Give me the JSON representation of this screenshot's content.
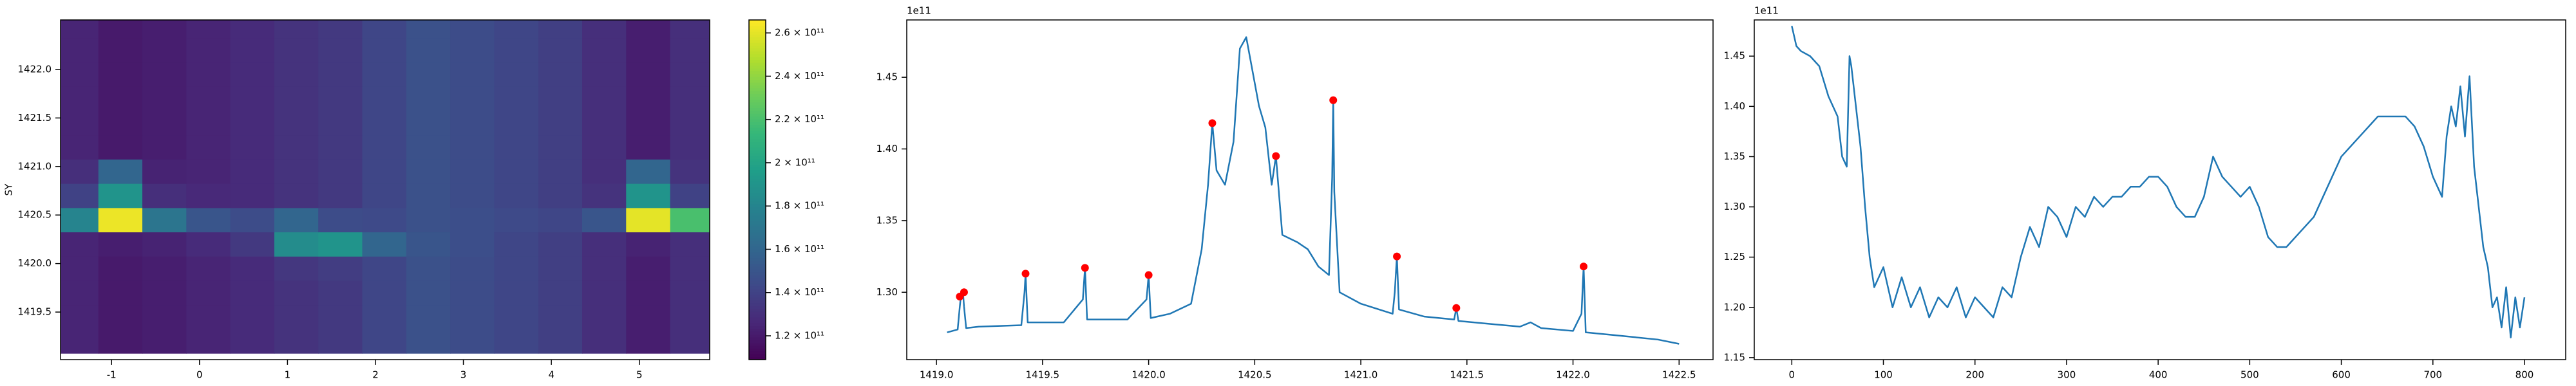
{
  "chart_data": [
    {
      "type": "heatmap",
      "ylabel": "SY",
      "colormap": "viridis",
      "xlim": [
        -1.58,
        5.8
      ],
      "ylim": [
        1419.01,
        1422.51
      ],
      "xticks": [
        -1,
        0,
        1,
        2,
        3,
        4,
        5
      ],
      "yticks": [
        1419.5,
        {
          "value": 1420,
          "label": "1420.0"
        },
        1420.5,
        {
          "value": 1421,
          "label": "1421.0"
        },
        1421.5,
        {
          "value": 1422,
          "label": "1422.0"
        }
      ],
      "x": [
        -1.4,
        -0.9,
        -0.4,
        0.1,
        0.6,
        1.1,
        1.6,
        2.1,
        2.6,
        3.1,
        3.6,
        4.1,
        4.6,
        5.1,
        5.6
      ],
      "y": [
        1419.2,
        1419.45,
        1419.7,
        1419.95,
        1420.2,
        1420.45,
        1420.7,
        1420.95,
        1421.2,
        1421.45,
        1421.7,
        1421.95,
        1422.2,
        1422.45
      ],
      "z": [
        [
          125000000000.0,
          120000000000.0,
          122000000000.0,
          125000000000.0,
          128000000000.0,
          132000000000.0,
          135000000000.0,
          142000000000.0,
          148000000000.0,
          145000000000.0,
          142000000000.0,
          138000000000.0,
          130000000000.0,
          122000000000.0,
          130000000000.0
        ],
        [
          125000000000.0,
          120000000000.0,
          122000000000.0,
          125000000000.0,
          128000000000.0,
          132000000000.0,
          135000000000.0,
          142000000000.0,
          148000000000.0,
          145000000000.0,
          142000000000.0,
          138000000000.0,
          130000000000.0,
          122000000000.0,
          130000000000.0
        ],
        [
          125000000000.0,
          120000000000.0,
          122000000000.0,
          125000000000.0,
          128000000000.0,
          132000000000.0,
          135000000000.0,
          142000000000.0,
          148000000000.0,
          145000000000.0,
          142000000000.0,
          138000000000.0,
          130000000000.0,
          122000000000.0,
          130000000000.0
        ],
        [
          125000000000.0,
          120000000000.0,
          122000000000.0,
          125000000000.0,
          128000000000.0,
          134000000000.0,
          137000000000.0,
          142000000000.0,
          148000000000.0,
          145000000000.0,
          142000000000.0,
          138000000000.0,
          130000000000.0,
          122000000000.0,
          130000000000.0
        ],
        [
          125000000000.0,
          122000000000.0,
          124000000000.0,
          128000000000.0,
          135000000000.0,
          185000000000.0,
          190000000000.0,
          160000000000.0,
          150000000000.0,
          146000000000.0,
          142000000000.0,
          138000000000.0,
          130000000000.0,
          124000000000.0,
          130000000000.0
        ],
        [
          180000000000.0,
          262000000000.0,
          170000000000.0,
          150000000000.0,
          145000000000.0,
          160000000000.0,
          145000000000.0,
          144000000000.0,
          148000000000.0,
          146000000000.0,
          144000000000.0,
          142000000000.0,
          150000000000.0,
          260000000000.0,
          220000000000.0
        ],
        [
          140000000000.0,
          190000000000.0,
          130000000000.0,
          127000000000.0,
          128000000000.0,
          132000000000.0,
          135000000000.0,
          142000000000.0,
          148000000000.0,
          145000000000.0,
          142000000000.0,
          138000000000.0,
          132000000000.0,
          190000000000.0,
          140000000000.0
        ],
        [
          130000000000.0,
          160000000000.0,
          124000000000.0,
          125000000000.0,
          128000000000.0,
          132000000000.0,
          135000000000.0,
          142000000000.0,
          148000000000.0,
          145000000000.0,
          142000000000.0,
          138000000000.0,
          130000000000.0,
          160000000000.0,
          132000000000.0
        ],
        [
          125000000000.0,
          120000000000.0,
          122000000000.0,
          125000000000.0,
          128000000000.0,
          132000000000.0,
          135000000000.0,
          142000000000.0,
          148000000000.0,
          145000000000.0,
          142000000000.0,
          138000000000.0,
          130000000000.0,
          122000000000.0,
          130000000000.0
        ],
        [
          125000000000.0,
          120000000000.0,
          122000000000.0,
          125000000000.0,
          128000000000.0,
          132000000000.0,
          135000000000.0,
          142000000000.0,
          148000000000.0,
          145000000000.0,
          142000000000.0,
          138000000000.0,
          130000000000.0,
          122000000000.0,
          130000000000.0
        ],
        [
          125000000000.0,
          120000000000.0,
          122000000000.0,
          125000000000.0,
          128000000000.0,
          132000000000.0,
          135000000000.0,
          142000000000.0,
          148000000000.0,
          145000000000.0,
          142000000000.0,
          138000000000.0,
          130000000000.0,
          122000000000.0,
          130000000000.0
        ],
        [
          125000000000.0,
          120000000000.0,
          122000000000.0,
          125000000000.0,
          128000000000.0,
          132000000000.0,
          135000000000.0,
          142000000000.0,
          148000000000.0,
          145000000000.0,
          142000000000.0,
          138000000000.0,
          130000000000.0,
          122000000000.0,
          130000000000.0
        ],
        [
          125000000000.0,
          120000000000.0,
          122000000000.0,
          125000000000.0,
          128000000000.0,
          132000000000.0,
          135000000000.0,
          142000000000.0,
          148000000000.0,
          145000000000.0,
          142000000000.0,
          138000000000.0,
          130000000000.0,
          122000000000.0,
          130000000000.0
        ],
        [
          125000000000.0,
          120000000000.0,
          122000000000.0,
          125000000000.0,
          128000000000.0,
          132000000000.0,
          135000000000.0,
          142000000000.0,
          148000000000.0,
          145000000000.0,
          142000000000.0,
          138000000000.0,
          130000000000.0,
          122000000000.0,
          130000000000.0
        ]
      ],
      "colorbar": {
        "lim": [
          109000000000.0,
          266000000000.0
        ],
        "ticks": [
          {
            "value": 120000000000.0,
            "label": "1.2 × 10¹¹"
          },
          {
            "value": 140000000000.0,
            "label": "1.4 × 10¹¹"
          },
          {
            "value": 160000000000.0,
            "label": "1.6 × 10¹¹"
          },
          {
            "value": 180000000000.0,
            "label": "1.8 × 10¹¹"
          },
          {
            "value": 200000000000.0,
            "label": "2 × 10¹¹"
          },
          {
            "value": 220000000000.0,
            "label": "2.2 × 10¹¹"
          },
          {
            "value": 240000000000.0,
            "label": "2.4 × 10¹¹"
          },
          {
            "value": 260000000000.0,
            "label": "2.6 × 10¹¹"
          }
        ]
      }
    },
    {
      "type": "line",
      "offset_text": "1e11",
      "xlim": [
        1418.86,
        1422.66
      ],
      "ylim": [
        1.253,
        1.49
      ],
      "xticks": [
        {
          "value": 1419,
          "label": "1419.0"
        },
        1419.5,
        {
          "value": 1420,
          "label": "1420.0"
        },
        1420.5,
        {
          "value": 1421,
          "label": "1421.0"
        },
        1421.5,
        {
          "value": 1422,
          "label": "1422.0"
        },
        1422.5
      ],
      "yticks": [
        {
          "value": 1.3,
          "label": "1.30"
        },
        1.35,
        {
          "value": 1.4,
          "label": "1.40"
        },
        1.45
      ],
      "series": [
        {
          "color": "#1f77b4",
          "style": "line",
          "x": [
            1419.05,
            1419.1,
            1419.11,
            1419.115,
            1419.125,
            1419.13,
            1419.14,
            1419.2,
            1419.4,
            1419.415,
            1419.42,
            1419.43,
            1419.6,
            1419.69,
            1419.7,
            1419.71,
            1419.9,
            1419.99,
            1420.0,
            1420.01,
            1420.1,
            1420.2,
            1420.25,
            1420.28,
            1420.3,
            1420.32,
            1420.36,
            1420.4,
            1420.43,
            1420.46,
            1420.48,
            1420.52,
            1420.55,
            1420.58,
            1420.6,
            1420.63,
            1420.7,
            1420.75,
            1420.8,
            1420.85,
            1420.865,
            1420.87,
            1420.875,
            1420.9,
            1421.0,
            1421.15,
            1421.16,
            1421.17,
            1421.18,
            1421.3,
            1421.44,
            1421.45,
            1421.46,
            1421.6,
            1421.75,
            1421.8,
            1421.85,
            1422.0,
            1422.04,
            1422.05,
            1422.06,
            1422.2,
            1422.4,
            1422.5
          ],
          "values": [
            1.272,
            1.274,
            1.29,
            1.297,
            1.3,
            1.29,
            1.275,
            1.276,
            1.277,
            1.3,
            1.313,
            1.279,
            1.279,
            1.295,
            1.317,
            1.281,
            1.281,
            1.295,
            1.312,
            1.282,
            1.285,
            1.292,
            1.33,
            1.375,
            1.418,
            1.385,
            1.375,
            1.405,
            1.47,
            1.478,
            1.462,
            1.43,
            1.415,
            1.375,
            1.395,
            1.34,
            1.335,
            1.33,
            1.318,
            1.312,
            1.38,
            1.434,
            1.37,
            1.3,
            1.292,
            1.285,
            1.3,
            1.325,
            1.288,
            1.283,
            1.281,
            1.289,
            1.28,
            1.278,
            1.276,
            1.279,
            1.275,
            1.273,
            1.285,
            1.318,
            1.272,
            1.27,
            1.267,
            1.264
          ]
        },
        {
          "color": "#ff0000",
          "style": "markers",
          "x": [
            1419.11,
            1419.13,
            1419.42,
            1419.7,
            1420.0,
            1420.3,
            1420.6,
            1420.87,
            1421.17,
            1421.45,
            1422.05
          ],
          "values": [
            1.297,
            1.3,
            1.313,
            1.317,
            1.312,
            1.418,
            1.395,
            1.434,
            1.325,
            1.289,
            1.318
          ]
        }
      ]
    },
    {
      "type": "line",
      "offset_text": "1e11",
      "xlim": [
        -41,
        845
      ],
      "ylim": [
        1.148,
        1.486
      ],
      "xticks": [
        0,
        100,
        200,
        300,
        400,
        500,
        600,
        700,
        800
      ],
      "yticks": [
        1.15,
        {
          "value": 1.2,
          "label": "1.20"
        },
        1.25,
        {
          "value": 1.3,
          "label": "1.30"
        },
        1.35,
        {
          "value": 1.4,
          "label": "1.40"
        },
        1.45
      ],
      "series": [
        {
          "color": "#1f77b4",
          "style": "line",
          "x": [
            0,
            5,
            10,
            20,
            30,
            40,
            50,
            55,
            60,
            63,
            65,
            70,
            75,
            80,
            85,
            90,
            100,
            110,
            120,
            130,
            140,
            150,
            160,
            170,
            180,
            190,
            200,
            210,
            220,
            230,
            240,
            250,
            260,
            270,
            280,
            290,
            300,
            310,
            320,
            330,
            340,
            350,
            360,
            370,
            380,
            390,
            400,
            410,
            420,
            430,
            440,
            450,
            460,
            470,
            480,
            490,
            500,
            510,
            520,
            530,
            540,
            550,
            560,
            570,
            580,
            590,
            600,
            610,
            620,
            630,
            640,
            650,
            660,
            670,
            680,
            690,
            700,
            710,
            715,
            720,
            725,
            730,
            735,
            740,
            745,
            750,
            755,
            760,
            765,
            770,
            775,
            780,
            785,
            790,
            795,
            800
          ],
          "values": [
            1.48,
            1.46,
            1.455,
            1.45,
            1.44,
            1.41,
            1.39,
            1.35,
            1.34,
            1.45,
            1.44,
            1.4,
            1.36,
            1.3,
            1.25,
            1.22,
            1.24,
            1.2,
            1.23,
            1.2,
            1.22,
            1.19,
            1.21,
            1.2,
            1.22,
            1.19,
            1.21,
            1.2,
            1.19,
            1.22,
            1.21,
            1.25,
            1.28,
            1.26,
            1.3,
            1.29,
            1.27,
            1.3,
            1.29,
            1.31,
            1.3,
            1.31,
            1.31,
            1.32,
            1.32,
            1.33,
            1.33,
            1.32,
            1.3,
            1.29,
            1.29,
            1.31,
            1.35,
            1.33,
            1.32,
            1.31,
            1.32,
            1.3,
            1.27,
            1.26,
            1.26,
            1.27,
            1.28,
            1.29,
            1.31,
            1.33,
            1.35,
            1.36,
            1.37,
            1.38,
            1.39,
            1.39,
            1.39,
            1.39,
            1.38,
            1.36,
            1.33,
            1.31,
            1.37,
            1.4,
            1.38,
            1.42,
            1.37,
            1.43,
            1.34,
            1.3,
            1.26,
            1.24,
            1.2,
            1.21,
            1.18,
            1.22,
            1.17,
            1.21,
            1.18,
            1.21
          ]
        }
      ]
    }
  ]
}
